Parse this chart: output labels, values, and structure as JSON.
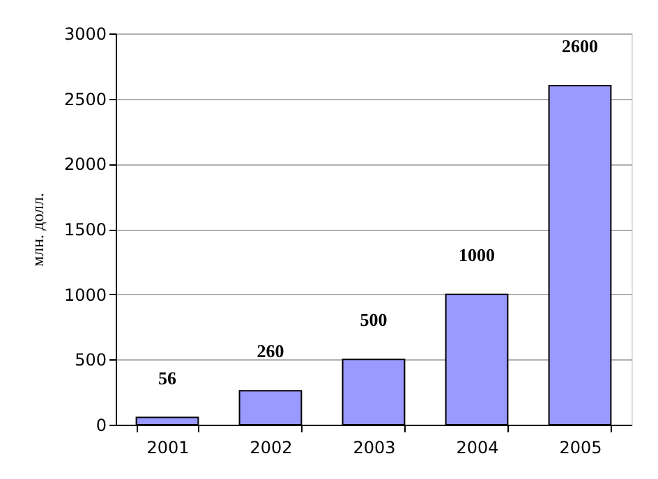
{
  "chart_data": {
    "type": "bar",
    "ylabel": "млн. долл.",
    "categories": [
      "2001",
      "2002",
      "2003",
      "2004",
      "2005"
    ],
    "values": [
      56,
      260,
      500,
      1000,
      2600
    ],
    "color": "#9999ff",
    "ylim": [
      0,
      3000
    ],
    "yticks": [
      0,
      500,
      1000,
      1500,
      2000,
      2500,
      3000
    ],
    "grid": "y",
    "data_labels": true
  }
}
